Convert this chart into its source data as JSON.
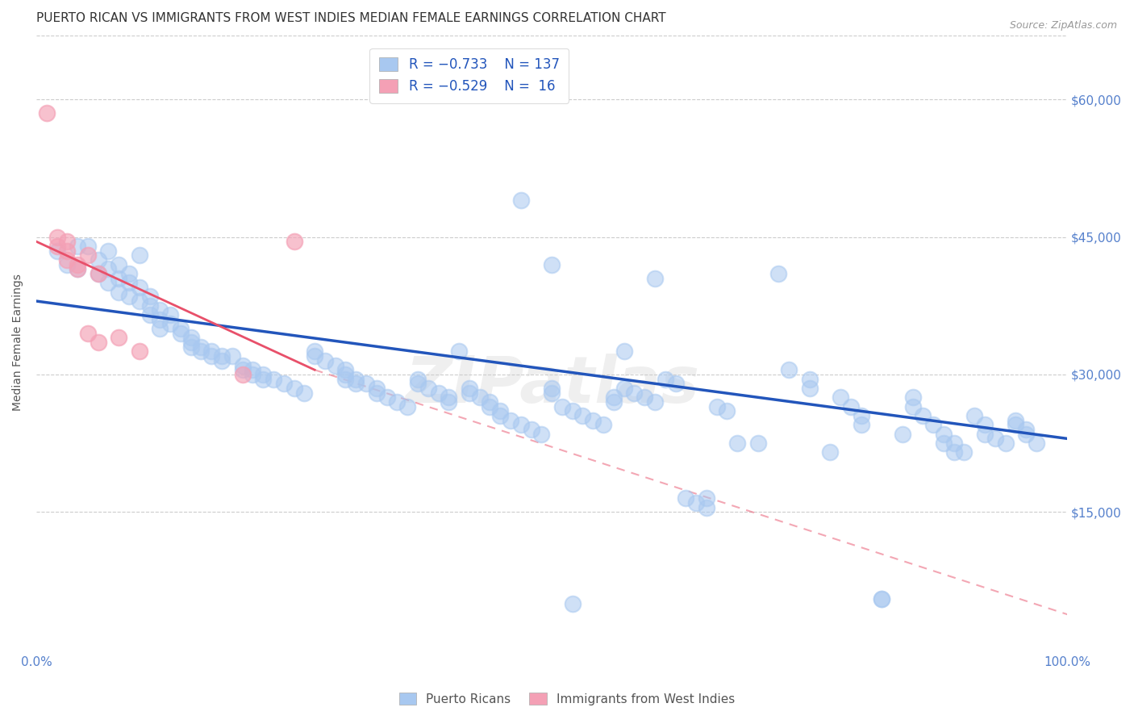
{
  "title": "PUERTO RICAN VS IMMIGRANTS FROM WEST INDIES MEDIAN FEMALE EARNINGS CORRELATION CHART",
  "source": "Source: ZipAtlas.com",
  "ylabel": "Median Female Earnings",
  "ytick_labels": [
    "$15,000",
    "$30,000",
    "$45,000",
    "$60,000"
  ],
  "ytick_values": [
    15000,
    30000,
    45000,
    60000
  ],
  "ymin": 0,
  "ymax": 67000,
  "xmin": 0.0,
  "xmax": 1.0,
  "legend_label1": "Puerto Ricans",
  "legend_label2": "Immigrants from West Indies",
  "blue_color": "#A8C8F0",
  "pink_color": "#F4A0B5",
  "blue_line_color": "#2255BB",
  "pink_line_color": "#E8506A",
  "title_color": "#333333",
  "axis_label_color": "#5580CC",
  "watermark_text": "ZIPatlas",
  "blue_scatter": [
    [
      0.02,
      43500
    ],
    [
      0.03,
      42000
    ],
    [
      0.04,
      44000
    ],
    [
      0.04,
      41500
    ],
    [
      0.05,
      44000
    ],
    [
      0.06,
      42500
    ],
    [
      0.06,
      41000
    ],
    [
      0.07,
      43500
    ],
    [
      0.07,
      41500
    ],
    [
      0.07,
      40000
    ],
    [
      0.08,
      42000
    ],
    [
      0.08,
      40500
    ],
    [
      0.08,
      39000
    ],
    [
      0.09,
      41000
    ],
    [
      0.09,
      40000
    ],
    [
      0.09,
      38500
    ],
    [
      0.1,
      39500
    ],
    [
      0.1,
      38000
    ],
    [
      0.1,
      43000
    ],
    [
      0.11,
      38500
    ],
    [
      0.11,
      37500
    ],
    [
      0.11,
      36500
    ],
    [
      0.12,
      37000
    ],
    [
      0.12,
      36000
    ],
    [
      0.12,
      35000
    ],
    [
      0.13,
      36500
    ],
    [
      0.13,
      35500
    ],
    [
      0.14,
      35000
    ],
    [
      0.14,
      34500
    ],
    [
      0.15,
      34000
    ],
    [
      0.15,
      33500
    ],
    [
      0.15,
      33000
    ],
    [
      0.16,
      33000
    ],
    [
      0.16,
      32500
    ],
    [
      0.17,
      32500
    ],
    [
      0.17,
      32000
    ],
    [
      0.18,
      32000
    ],
    [
      0.18,
      31500
    ],
    [
      0.19,
      32000
    ],
    [
      0.2,
      31000
    ],
    [
      0.2,
      30500
    ],
    [
      0.21,
      30500
    ],
    [
      0.21,
      30000
    ],
    [
      0.22,
      30000
    ],
    [
      0.22,
      29500
    ],
    [
      0.23,
      29500
    ],
    [
      0.24,
      29000
    ],
    [
      0.25,
      28500
    ],
    [
      0.26,
      28000
    ],
    [
      0.27,
      32500
    ],
    [
      0.27,
      32000
    ],
    [
      0.28,
      31500
    ],
    [
      0.29,
      31000
    ],
    [
      0.3,
      30500
    ],
    [
      0.3,
      30000
    ],
    [
      0.3,
      29500
    ],
    [
      0.31,
      29500
    ],
    [
      0.31,
      29000
    ],
    [
      0.32,
      29000
    ],
    [
      0.33,
      28500
    ],
    [
      0.33,
      28000
    ],
    [
      0.34,
      27500
    ],
    [
      0.35,
      27000
    ],
    [
      0.36,
      26500
    ],
    [
      0.37,
      29500
    ],
    [
      0.37,
      29000
    ],
    [
      0.38,
      28500
    ],
    [
      0.39,
      28000
    ],
    [
      0.4,
      27500
    ],
    [
      0.4,
      27000
    ],
    [
      0.41,
      32500
    ],
    [
      0.42,
      28500
    ],
    [
      0.42,
      28000
    ],
    [
      0.43,
      27500
    ],
    [
      0.44,
      27000
    ],
    [
      0.44,
      26500
    ],
    [
      0.45,
      26000
    ],
    [
      0.45,
      25500
    ],
    [
      0.46,
      25000
    ],
    [
      0.47,
      24500
    ],
    [
      0.47,
      49000
    ],
    [
      0.48,
      24000
    ],
    [
      0.49,
      23500
    ],
    [
      0.5,
      28500
    ],
    [
      0.5,
      28000
    ],
    [
      0.5,
      42000
    ],
    [
      0.51,
      26500
    ],
    [
      0.52,
      26000
    ],
    [
      0.53,
      25500
    ],
    [
      0.54,
      25000
    ],
    [
      0.55,
      24500
    ],
    [
      0.56,
      27500
    ],
    [
      0.56,
      27000
    ],
    [
      0.57,
      32500
    ],
    [
      0.57,
      28500
    ],
    [
      0.58,
      28000
    ],
    [
      0.59,
      27500
    ],
    [
      0.6,
      27000
    ],
    [
      0.6,
      40500
    ],
    [
      0.61,
      29500
    ],
    [
      0.62,
      29000
    ],
    [
      0.63,
      16500
    ],
    [
      0.64,
      16000
    ],
    [
      0.65,
      15500
    ],
    [
      0.65,
      16500
    ],
    [
      0.66,
      26500
    ],
    [
      0.67,
      26000
    ],
    [
      0.68,
      22500
    ],
    [
      0.7,
      22500
    ],
    [
      0.72,
      41000
    ],
    [
      0.73,
      30500
    ],
    [
      0.75,
      29500
    ],
    [
      0.75,
      28500
    ],
    [
      0.77,
      21500
    ],
    [
      0.78,
      27500
    ],
    [
      0.79,
      26500
    ],
    [
      0.8,
      25500
    ],
    [
      0.8,
      24500
    ],
    [
      0.82,
      5500
    ],
    [
      0.84,
      23500
    ],
    [
      0.85,
      27500
    ],
    [
      0.85,
      26500
    ],
    [
      0.86,
      25500
    ],
    [
      0.87,
      24500
    ],
    [
      0.88,
      23500
    ],
    [
      0.88,
      22500
    ],
    [
      0.89,
      22500
    ],
    [
      0.89,
      21500
    ],
    [
      0.9,
      21500
    ],
    [
      0.91,
      25500
    ],
    [
      0.92,
      24500
    ],
    [
      0.92,
      23500
    ],
    [
      0.93,
      23000
    ],
    [
      0.94,
      22500
    ],
    [
      0.95,
      25000
    ],
    [
      0.95,
      24500
    ],
    [
      0.96,
      24000
    ],
    [
      0.96,
      23500
    ],
    [
      0.97,
      22500
    ],
    [
      0.52,
      5000
    ],
    [
      0.82,
      5500
    ]
  ],
  "pink_scatter": [
    [
      0.01,
      58500
    ],
    [
      0.02,
      45000
    ],
    [
      0.02,
      44000
    ],
    [
      0.03,
      44500
    ],
    [
      0.03,
      43500
    ],
    [
      0.03,
      42500
    ],
    [
      0.04,
      42000
    ],
    [
      0.04,
      41500
    ],
    [
      0.05,
      34500
    ],
    [
      0.05,
      43000
    ],
    [
      0.06,
      41000
    ],
    [
      0.06,
      33500
    ],
    [
      0.08,
      34000
    ],
    [
      0.1,
      32500
    ],
    [
      0.2,
      30000
    ],
    [
      0.25,
      44500
    ]
  ],
  "blue_line_x": [
    0.0,
    1.0
  ],
  "blue_line_y": [
    38000,
    23000
  ],
  "pink_line_x": [
    0.0,
    0.27
  ],
  "pink_line_y": [
    44500,
    30500
  ],
  "dashed_line_x": [
    0.27,
    1.05
  ],
  "dashed_line_y": [
    30500,
    2000
  ],
  "grid_color": "#CCCCCC",
  "grid_linestyle": "--"
}
